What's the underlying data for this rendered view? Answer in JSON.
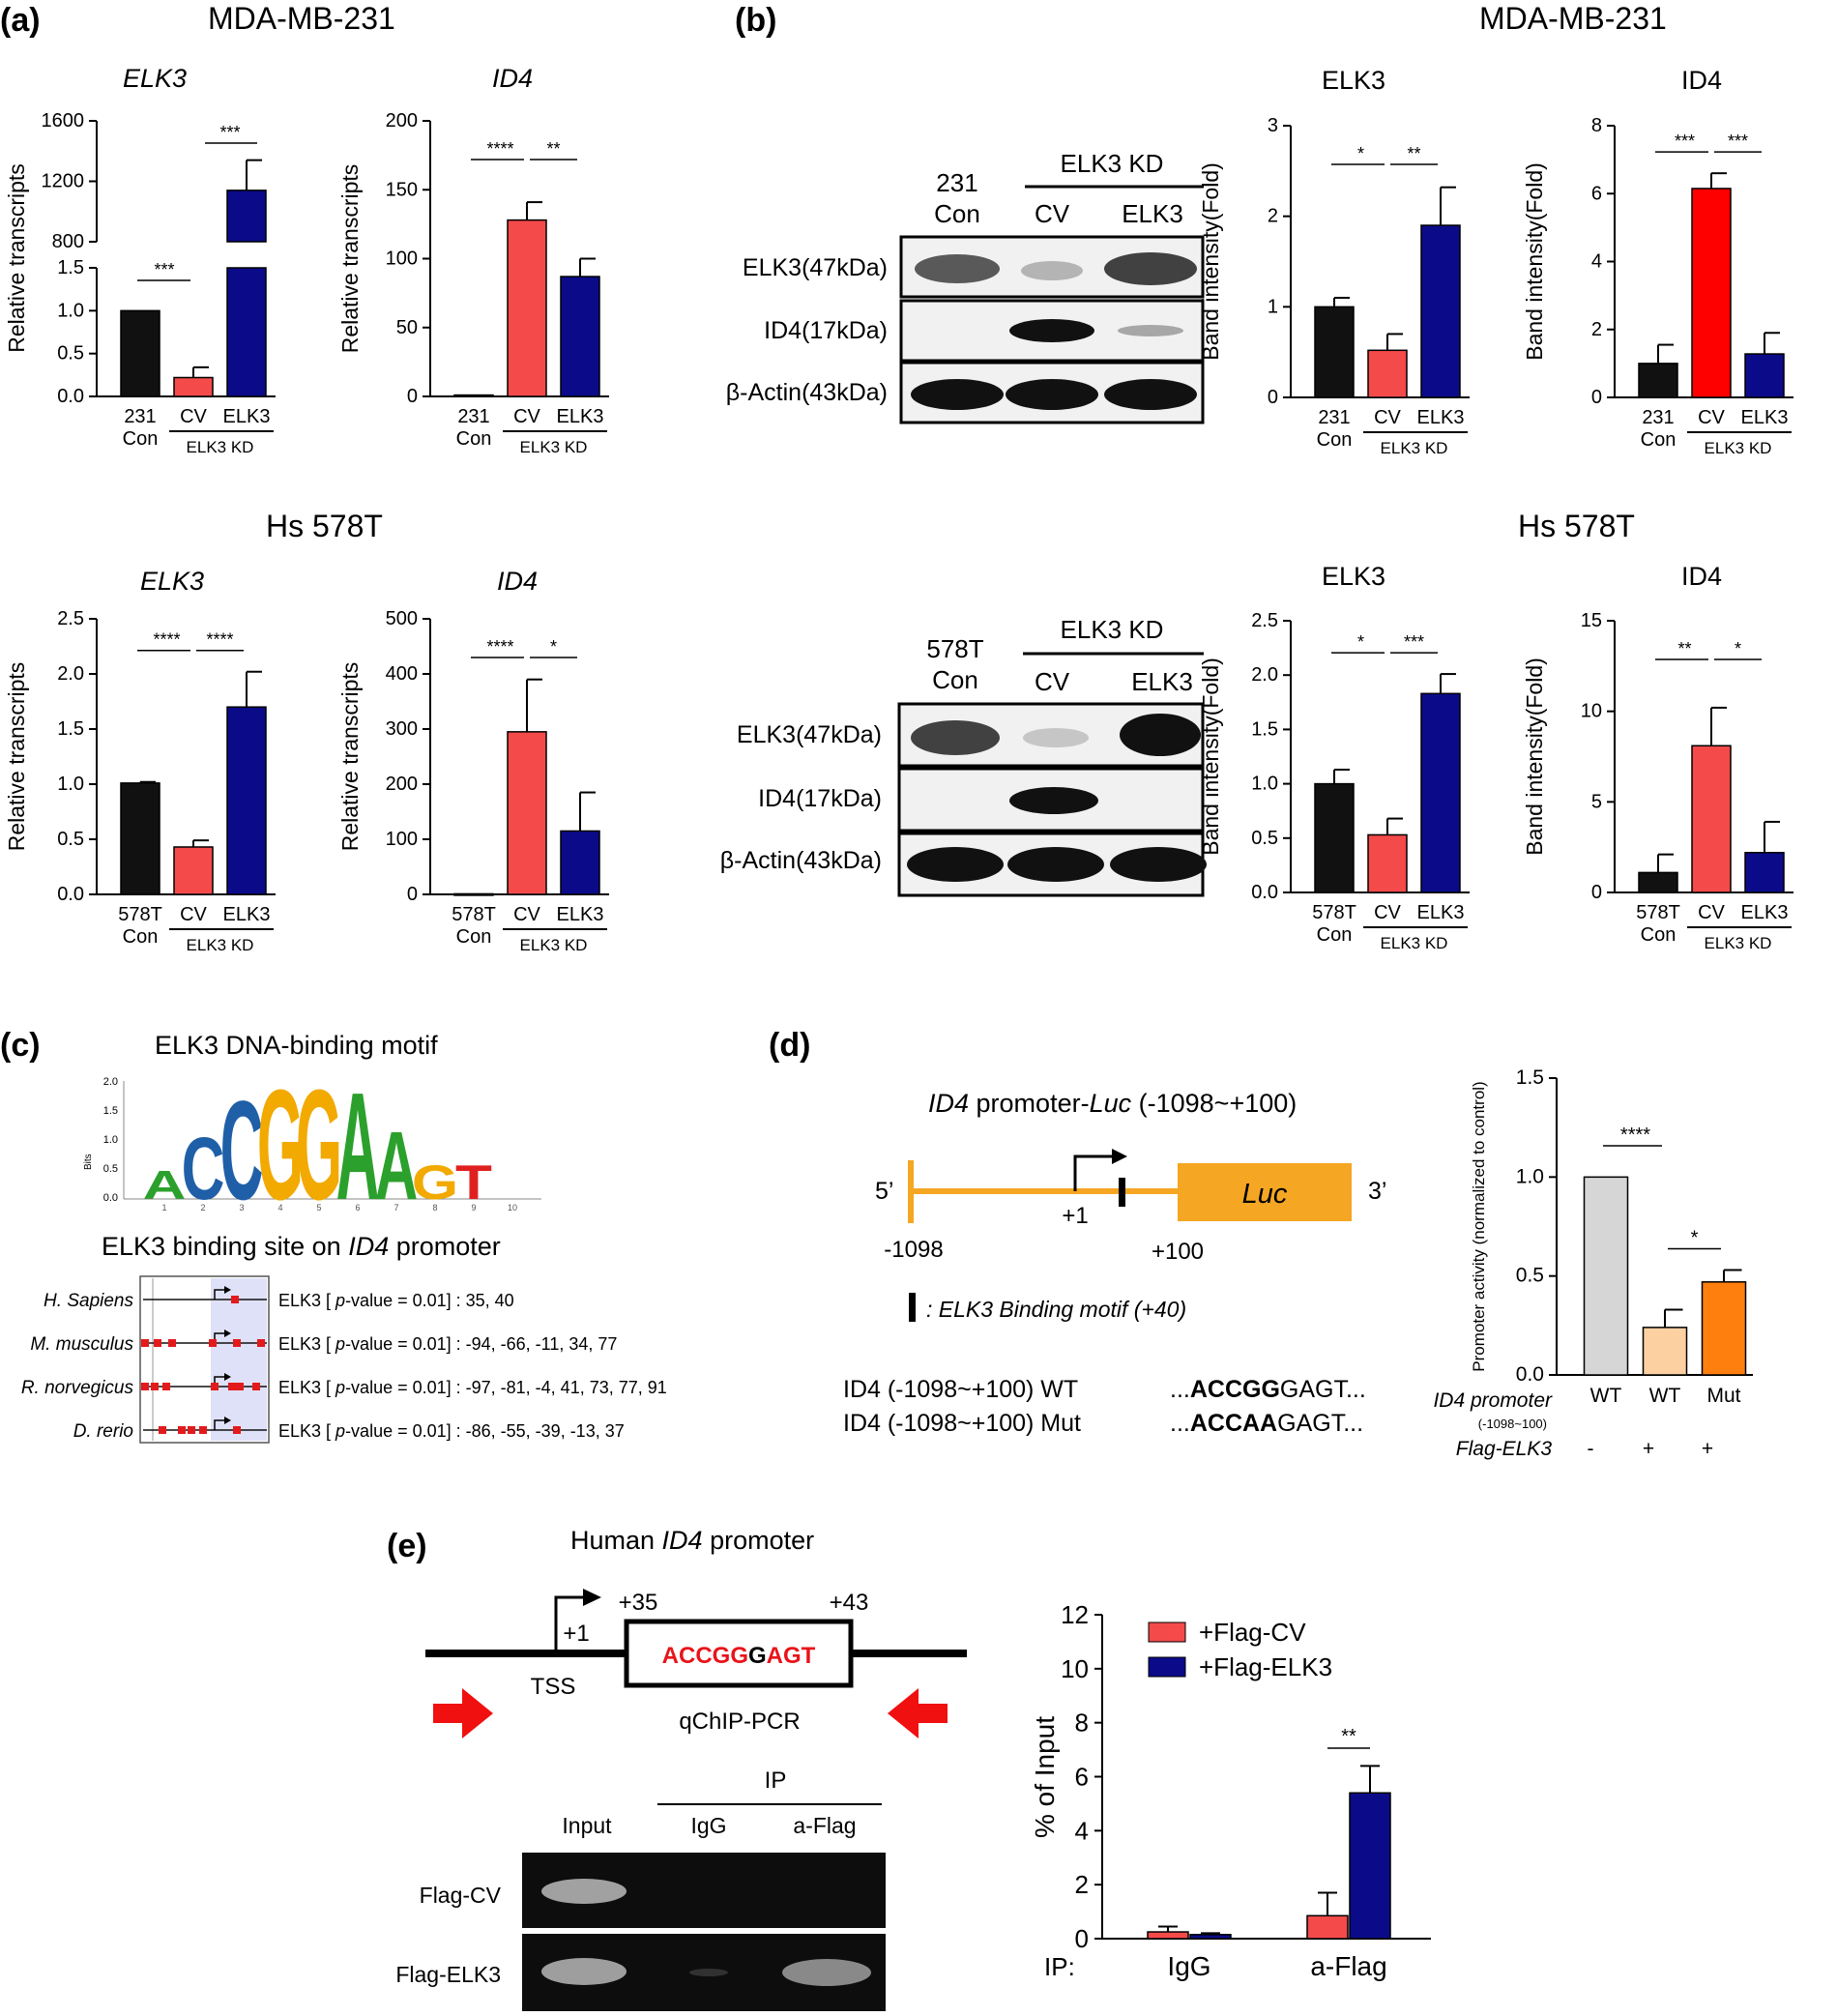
{
  "panels": {
    "a": {
      "label": "(a)",
      "cell_line_top": "MDA-MB-231",
      "cell_line_bottom": "Hs 578T"
    },
    "b": {
      "label": "(b)",
      "cell_line_top": "MDA-MB-231",
      "cell_line_bottom": "Hs 578T"
    },
    "c": {
      "label": "(c)",
      "title": "ELK3 DNA-binding motif",
      "subtitle_pre": "ELK3 binding site on ",
      "subtitle_gene": "ID4",
      "subtitle_post": " promoter",
      "logo_ylabel": "Bits",
      "logo_yticks": [
        "2.0",
        "1.5",
        "1.0",
        "0.5",
        "0.0"
      ],
      "logo_xticks": [
        "1",
        "2",
        "3",
        "4",
        "5",
        "6",
        "7",
        "8",
        "9",
        "10"
      ],
      "motif_letters": [
        "A",
        "C",
        "C",
        "G",
        "G",
        "A",
        "A",
        "G",
        "T",
        ""
      ],
      "species": [
        {
          "name": "H. Sapiens",
          "text_pre": "ELK3 [ ",
          "pval": "p",
          "text_post": "-value = 0.01] : 35, 40"
        },
        {
          "name": "M. musculus",
          "text_pre": "ELK3 [ ",
          "pval": "p",
          "text_post": "-value = 0.01] : -94, -66, -11, 34, 77"
        },
        {
          "name": "R. norvegicus",
          "text_pre": "ELK3 [ ",
          "pval": "p",
          "text_post": "-value = 0.01] : -97, -81, -4, 41, 73, 77, 91"
        },
        {
          "name": "D. rerio",
          "text_pre": "ELK3 [ ",
          "pval": "p",
          "text_post": "-value = 0.01] : -86, -55, -39, -13, 37"
        }
      ]
    },
    "d": {
      "label": "(d)",
      "construct_gene": "ID4",
      "construct_mid": " promoter-",
      "construct_luc": "Luc",
      "construct_range": " (-1098~+100)",
      "five": "5’",
      "three": "3’",
      "luc_box": "Luc",
      "plus1": "+1",
      "minus1098": "-1098",
      "plus100": "+100",
      "legend_text": ": ELK3 Binding motif (+40)",
      "wt_name": "ID4 (-1098~+100) WT",
      "wt_seq_pre": "...",
      "wt_seq_bold": "ACCGG",
      "wt_seq_post_bold": "GAGT",
      "wt_seq_end": "...",
      "mut_name": "ID4 (-1098~+100) Mut",
      "mut_seq_pre": "...",
      "mut_seq_bold": "ACCAA",
      "mut_seq_post_bold": "GAGT",
      "mut_seq_end": "...",
      "row1_label": "ID4 promoter",
      "row1_sub": "(-1098~100)",
      "row2_label": "Flag-ELK3",
      "row2_values": [
        "-",
        "+",
        "+"
      ]
    },
    "e": {
      "label": "(e)",
      "title_pre": "Human ",
      "title_gene": "ID4",
      "title_post": " promoter",
      "plus35": "+35",
      "plus43": "+43",
      "plus1": "+1",
      "tss": "TSS",
      "qchip": "qChIP-PCR",
      "seq_red1": "ACCGG",
      "seq_black": "G",
      "seq_red2": "AGT",
      "ip": "IP",
      "col_input": "Input",
      "col_igg": "IgG",
      "col_aflag": "a-Flag",
      "row_cv": "Flag-CV",
      "row_elk3": "Flag-ELK3",
      "ip_axis_label": "IP:"
    }
  },
  "blots": {
    "top": {
      "con_label": [
        "231",
        "Con"
      ],
      "kd_label": "ELK3 KD",
      "lanes": [
        "CV",
        "ELK3"
      ],
      "rows": [
        "ELK3(47kDa)",
        "ID4(17kDa)",
        "β-Actin(43kDa)"
      ]
    },
    "bottom": {
      "con_label": [
        "578T",
        "Con"
      ],
      "kd_label": "ELK3 KD",
      "lanes": [
        "CV",
        "ELK3"
      ],
      "rows": [
        "ELK3(47kDa)",
        "ID4(17kDa)",
        "β-Actin(43kDa)"
      ]
    }
  },
  "colors": {
    "black": "#111111",
    "red": "#f44a4a",
    "brightred": "#ff0000",
    "navy": "#0b0b8a",
    "grey": "#d6d6d6",
    "peach": "#fdd0a2",
    "orange": "#ff7f0e",
    "construct": "#f5a623"
  },
  "chart_data": [
    {
      "id": "a1",
      "type": "bar",
      "title": "ELK3",
      "ylabel": "Relative transcripts",
      "categories": [
        "231 Con",
        "CV",
        "ELK3"
      ],
      "group_label": "ELK3 KD",
      "values": [
        1.0,
        0.22,
        1140
      ],
      "errors": [
        0,
        0.12,
        200
      ],
      "broken_axis": true,
      "ylim_low": [
        0,
        1.5
      ],
      "ylim_high": [
        800,
        1600
      ],
      "yticks_low": [
        "0.0",
        "0.5",
        "1.0",
        "1.5"
      ],
      "yticks_high": [
        "800",
        "1200",
        "1600"
      ],
      "sig": [
        [
          "***"
        ],
        [
          "***"
        ]
      ]
    },
    {
      "id": "a2",
      "type": "bar",
      "title": "ID4",
      "ylabel": "Relative transcripts",
      "categories": [
        "231 Con",
        "CV",
        "ELK3"
      ],
      "group_label": "ELK3 KD",
      "values": [
        1,
        128,
        87
      ],
      "errors": [
        0,
        13,
        13
      ],
      "ylim": [
        0,
        200
      ],
      "yticks": [
        "0",
        "50",
        "100",
        "150",
        "200"
      ],
      "sig": [
        "****",
        "**"
      ]
    },
    {
      "id": "a3",
      "type": "bar",
      "title": "ELK3",
      "ylabel": "Relative transcripts",
      "categories": [
        "578T Con",
        "CV",
        "ELK3"
      ],
      "group_label": "ELK3 KD",
      "values": [
        1.01,
        0.43,
        1.7
      ],
      "errors": [
        0.01,
        0.06,
        0.32
      ],
      "ylim": [
        0,
        2.5
      ],
      "yticks": [
        "0.0",
        "0.5",
        "1.0",
        "1.5",
        "2.0",
        "2.5"
      ],
      "sig": [
        "****",
        "****"
      ]
    },
    {
      "id": "a4",
      "type": "bar",
      "title": "ID4",
      "ylabel": "Relative transcripts",
      "categories": [
        "578T Con",
        "CV",
        "ELK3"
      ],
      "group_label": "ELK3 KD",
      "values": [
        1,
        295,
        115
      ],
      "errors": [
        0,
        95,
        70
      ],
      "ylim": [
        0,
        500
      ],
      "yticks": [
        "0",
        "100",
        "200",
        "300",
        "400",
        "500"
      ],
      "sig": [
        "****",
        "*"
      ]
    },
    {
      "id": "b1",
      "type": "bar",
      "title": "ELK3",
      "ylabel": "Band intensity(Fold)",
      "categories": [
        "231 Con",
        "CV",
        "ELK3"
      ],
      "group_label": "ELK3 KD",
      "values": [
        1.0,
        0.52,
        1.9
      ],
      "errors": [
        0.1,
        0.18,
        0.42
      ],
      "ylim": [
        0,
        3
      ],
      "yticks": [
        "0",
        "1",
        "2",
        "3"
      ],
      "sig": [
        "*",
        "**"
      ]
    },
    {
      "id": "b2",
      "type": "bar",
      "title": "ID4",
      "ylabel": "Band intensity(Fold)",
      "categories": [
        "231 Con",
        "CV",
        "ELK3"
      ],
      "group_label": "ELK3 KD",
      "values": [
        1.0,
        6.15,
        1.28
      ],
      "errors": [
        0.55,
        0.45,
        0.62
      ],
      "ylim": [
        0,
        8
      ],
      "yticks": [
        "0",
        "2",
        "4",
        "6",
        "8"
      ],
      "sig": [
        "***",
        "***"
      ]
    },
    {
      "id": "b3",
      "type": "bar",
      "title": "ELK3",
      "ylabel": "Band intensity(Fold)",
      "categories": [
        "578T Con",
        "CV",
        "ELK3"
      ],
      "group_label": "ELK3 KD",
      "values": [
        1.0,
        0.53,
        1.83
      ],
      "errors": [
        0.13,
        0.15,
        0.18
      ],
      "ylim": [
        0,
        2.5
      ],
      "yticks": [
        "0.0",
        "0.5",
        "1.0",
        "1.5",
        "2.0",
        "2.5"
      ],
      "sig": [
        "*",
        "***"
      ]
    },
    {
      "id": "b4",
      "type": "bar",
      "title": "ID4",
      "ylabel": "Band intensity(Fold)",
      "categories": [
        "578T Con",
        "CV",
        "ELK3"
      ],
      "group_label": "ELK3 KD",
      "values": [
        1.1,
        8.1,
        2.2
      ],
      "errors": [
        1.0,
        2.1,
        1.7
      ],
      "ylim": [
        0,
        15
      ],
      "yticks": [
        "0",
        "5",
        "10",
        "15"
      ],
      "sig": [
        "**",
        "*"
      ]
    },
    {
      "id": "d",
      "type": "bar",
      "ylabel": "Promoter activity (normalized to control)",
      "categories": [
        "WT",
        "WT",
        "Mut"
      ],
      "values": [
        1.0,
        0.24,
        0.47
      ],
      "errors": [
        0,
        0.09,
        0.06
      ],
      "ylim": [
        0,
        1.5
      ],
      "yticks": [
        "0.0",
        "0.5",
        "1.0",
        "1.5"
      ],
      "sig": [
        "****",
        "*"
      ]
    },
    {
      "id": "e",
      "type": "bar",
      "ylabel": "% of Input",
      "categories": [
        "IgG",
        "a-Flag"
      ],
      "series": [
        {
          "name": "+Flag-CV",
          "values": [
            0.25,
            0.85
          ],
          "errors": [
            0.2,
            0.85
          ]
        },
        {
          "name": "+Flag-ELK3",
          "values": [
            0.15,
            5.4
          ],
          "errors": [
            0.05,
            1.0
          ]
        }
      ],
      "ylim": [
        0,
        12
      ],
      "yticks": [
        "0",
        "2",
        "4",
        "6",
        "8",
        "10",
        "12"
      ],
      "sig": [
        "**"
      ],
      "legend": "top"
    }
  ]
}
